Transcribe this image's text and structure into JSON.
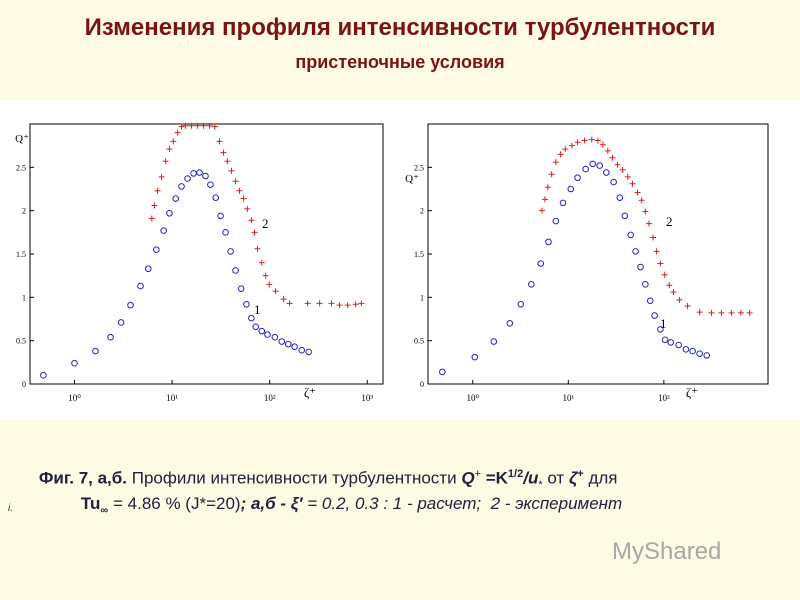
{
  "slide": {
    "title": "Изменения профиля интенсивности турбулентности",
    "subtitle": "пристеночные условия",
    "caption": {
      "line1": [
        "Фиг. 7, а,б.",
        " Профили интенсивности турбулентности ",
        "Q",
        "+",
        " =K",
        "1/2",
        "/u",
        "*",
        " от ",
        "ζ",
        "+",
        " для"
      ],
      "line2": [
        "Tu",
        "∞",
        " = 4.86 % (J*=20)",
        "; а,б - ",
        "ξ′",
        " = 0.2, 0.3 : 1 - расчет;  2 - эксперимент"
      ],
      "note": "i."
    },
    "watermark": "MyShared"
  },
  "chart_data": [
    {
      "type": "scatter",
      "x_label": "ζ⁺",
      "y_label": "Q⁺",
      "xscale": "log",
      "xlim": [
        0.35,
        1450
      ],
      "ylim": [
        0,
        3
      ],
      "xticks": [
        {
          "value": 1,
          "label": "10⁰"
        },
        {
          "value": 10,
          "label": "10¹"
        },
        {
          "value": 100,
          "label": "10²"
        },
        {
          "value": 1000,
          "label": "10³"
        }
      ],
      "yticks": [
        0,
        0.5,
        1,
        1.5,
        2,
        2.5
      ],
      "series": [
        {
          "name": "1",
          "color": "#2323c8",
          "marker": "circle",
          "x": [
            0.48,
            1.0,
            1.64,
            2.34,
            3.0,
            3.75,
            4.75,
            5.7,
            6.9,
            8.2,
            9.4,
            10.9,
            12.5,
            14.4,
            16.6,
            19.1,
            22,
            24.7,
            28,
            31.4,
            35.3,
            39.8,
            44.7,
            51,
            57.8,
            65,
            72,
            83,
            95,
            113,
            133,
            155,
            180,
            213,
            251
          ],
          "values": [
            0.1,
            0.24,
            0.38,
            0.54,
            0.71,
            0.91,
            1.13,
            1.33,
            1.55,
            1.77,
            1.97,
            2.14,
            2.28,
            2.37,
            2.43,
            2.44,
            2.4,
            2.3,
            2.15,
            1.94,
            1.75,
            1.53,
            1.31,
            1.1,
            0.92,
            0.76,
            0.66,
            0.61,
            0.57,
            0.54,
            0.49,
            0.46,
            0.43,
            0.39,
            0.37
          ]
        },
        {
          "name": "2",
          "color": "#dc1e1e",
          "marker": "plus",
          "x": [
            6.2,
            6.6,
            7.1,
            7.8,
            8.6,
            9.4,
            10.3,
            11.4,
            12.5,
            13.7,
            15.8,
            18.2,
            21,
            24.2,
            27.4,
            30.6,
            33.6,
            36.9,
            40.6,
            44.7,
            49,
            54,
            59,
            65,
            70,
            75,
            83,
            91,
            99,
            115,
            139,
            160,
            245,
            325,
            430,
            520,
            630,
            760,
            870
          ],
          "values": [
            1.91,
            2.06,
            2.23,
            2.39,
            2.57,
            2.71,
            2.8,
            2.9,
            2.97,
            2.98,
            2.98,
            2.98,
            2.98,
            2.98,
            2.97,
            2.8,
            2.67,
            2.57,
            2.46,
            2.34,
            2.23,
            2.14,
            2.02,
            1.89,
            1.75,
            1.56,
            1.4,
            1.25,
            1.15,
            1.07,
            0.98,
            0.93,
            0.93,
            0.93,
            0.93,
            0.91,
            0.91,
            0.92,
            0.93
          ]
        }
      ]
    },
    {
      "type": "scatter",
      "x_label": "ζ⁺",
      "y_label": "Q⁺",
      "xscale": "log",
      "xlim": [
        0.34,
        1230
      ],
      "ylim": [
        0,
        3
      ],
      "xticks": [
        {
          "value": 1,
          "label": "10⁰"
        },
        {
          "value": 10,
          "label": "10¹"
        },
        {
          "value": 100,
          "label": "10²"
        }
      ],
      "yticks": [
        0,
        0.5,
        1,
        1.5,
        2,
        2.5
      ],
      "series": [
        {
          "name": "1",
          "color": "#2323c8",
          "marker": "circle",
          "x": [
            0.48,
            1.05,
            1.66,
            2.44,
            3.18,
            4.1,
            5.15,
            6.2,
            7.4,
            8.8,
            10.6,
            12.5,
            15.2,
            18,
            21.3,
            25,
            29.8,
            34.6,
            39,
            45,
            50.6,
            57,
            64,
            72,
            80,
            92,
            103,
            118,
            143,
            170,
            200,
            237,
            281
          ],
          "values": [
            0.14,
            0.31,
            0.49,
            0.7,
            0.92,
            1.15,
            1.39,
            1.64,
            1.88,
            2.09,
            2.25,
            2.38,
            2.48,
            2.54,
            2.52,
            2.44,
            2.33,
            2.15,
            1.94,
            1.72,
            1.53,
            1.35,
            1.15,
            0.96,
            0.79,
            0.63,
            0.51,
            0.48,
            0.45,
            0.4,
            0.38,
            0.35,
            0.33
          ]
        },
        {
          "name": "2",
          "color": "#dc1e1e",
          "marker": "plus",
          "x": [
            5.3,
            5.7,
            6.1,
            6.7,
            7.4,
            8.3,
            9.3,
            10.9,
            12.5,
            14.8,
            17.6,
            20.4,
            23,
            25.9,
            29,
            32.7,
            37,
            41.9,
            47,
            53,
            58.5,
            64,
            70,
            77,
            84,
            92,
            102,
            114,
            126,
            146,
            177,
            237,
            315,
            400,
            510,
            640,
            790
          ],
          "values": [
            2.0,
            2.13,
            2.27,
            2.42,
            2.56,
            2.65,
            2.71,
            2.75,
            2.79,
            2.81,
            2.82,
            2.81,
            2.76,
            2.69,
            2.61,
            2.53,
            2.47,
            2.39,
            2.31,
            2.21,
            2.12,
            1.99,
            1.85,
            1.69,
            1.53,
            1.39,
            1.26,
            1.14,
            1.06,
            0.97,
            0.9,
            0.83,
            0.82,
            0.82,
            0.82,
            0.82,
            0.82
          ]
        }
      ]
    }
  ]
}
